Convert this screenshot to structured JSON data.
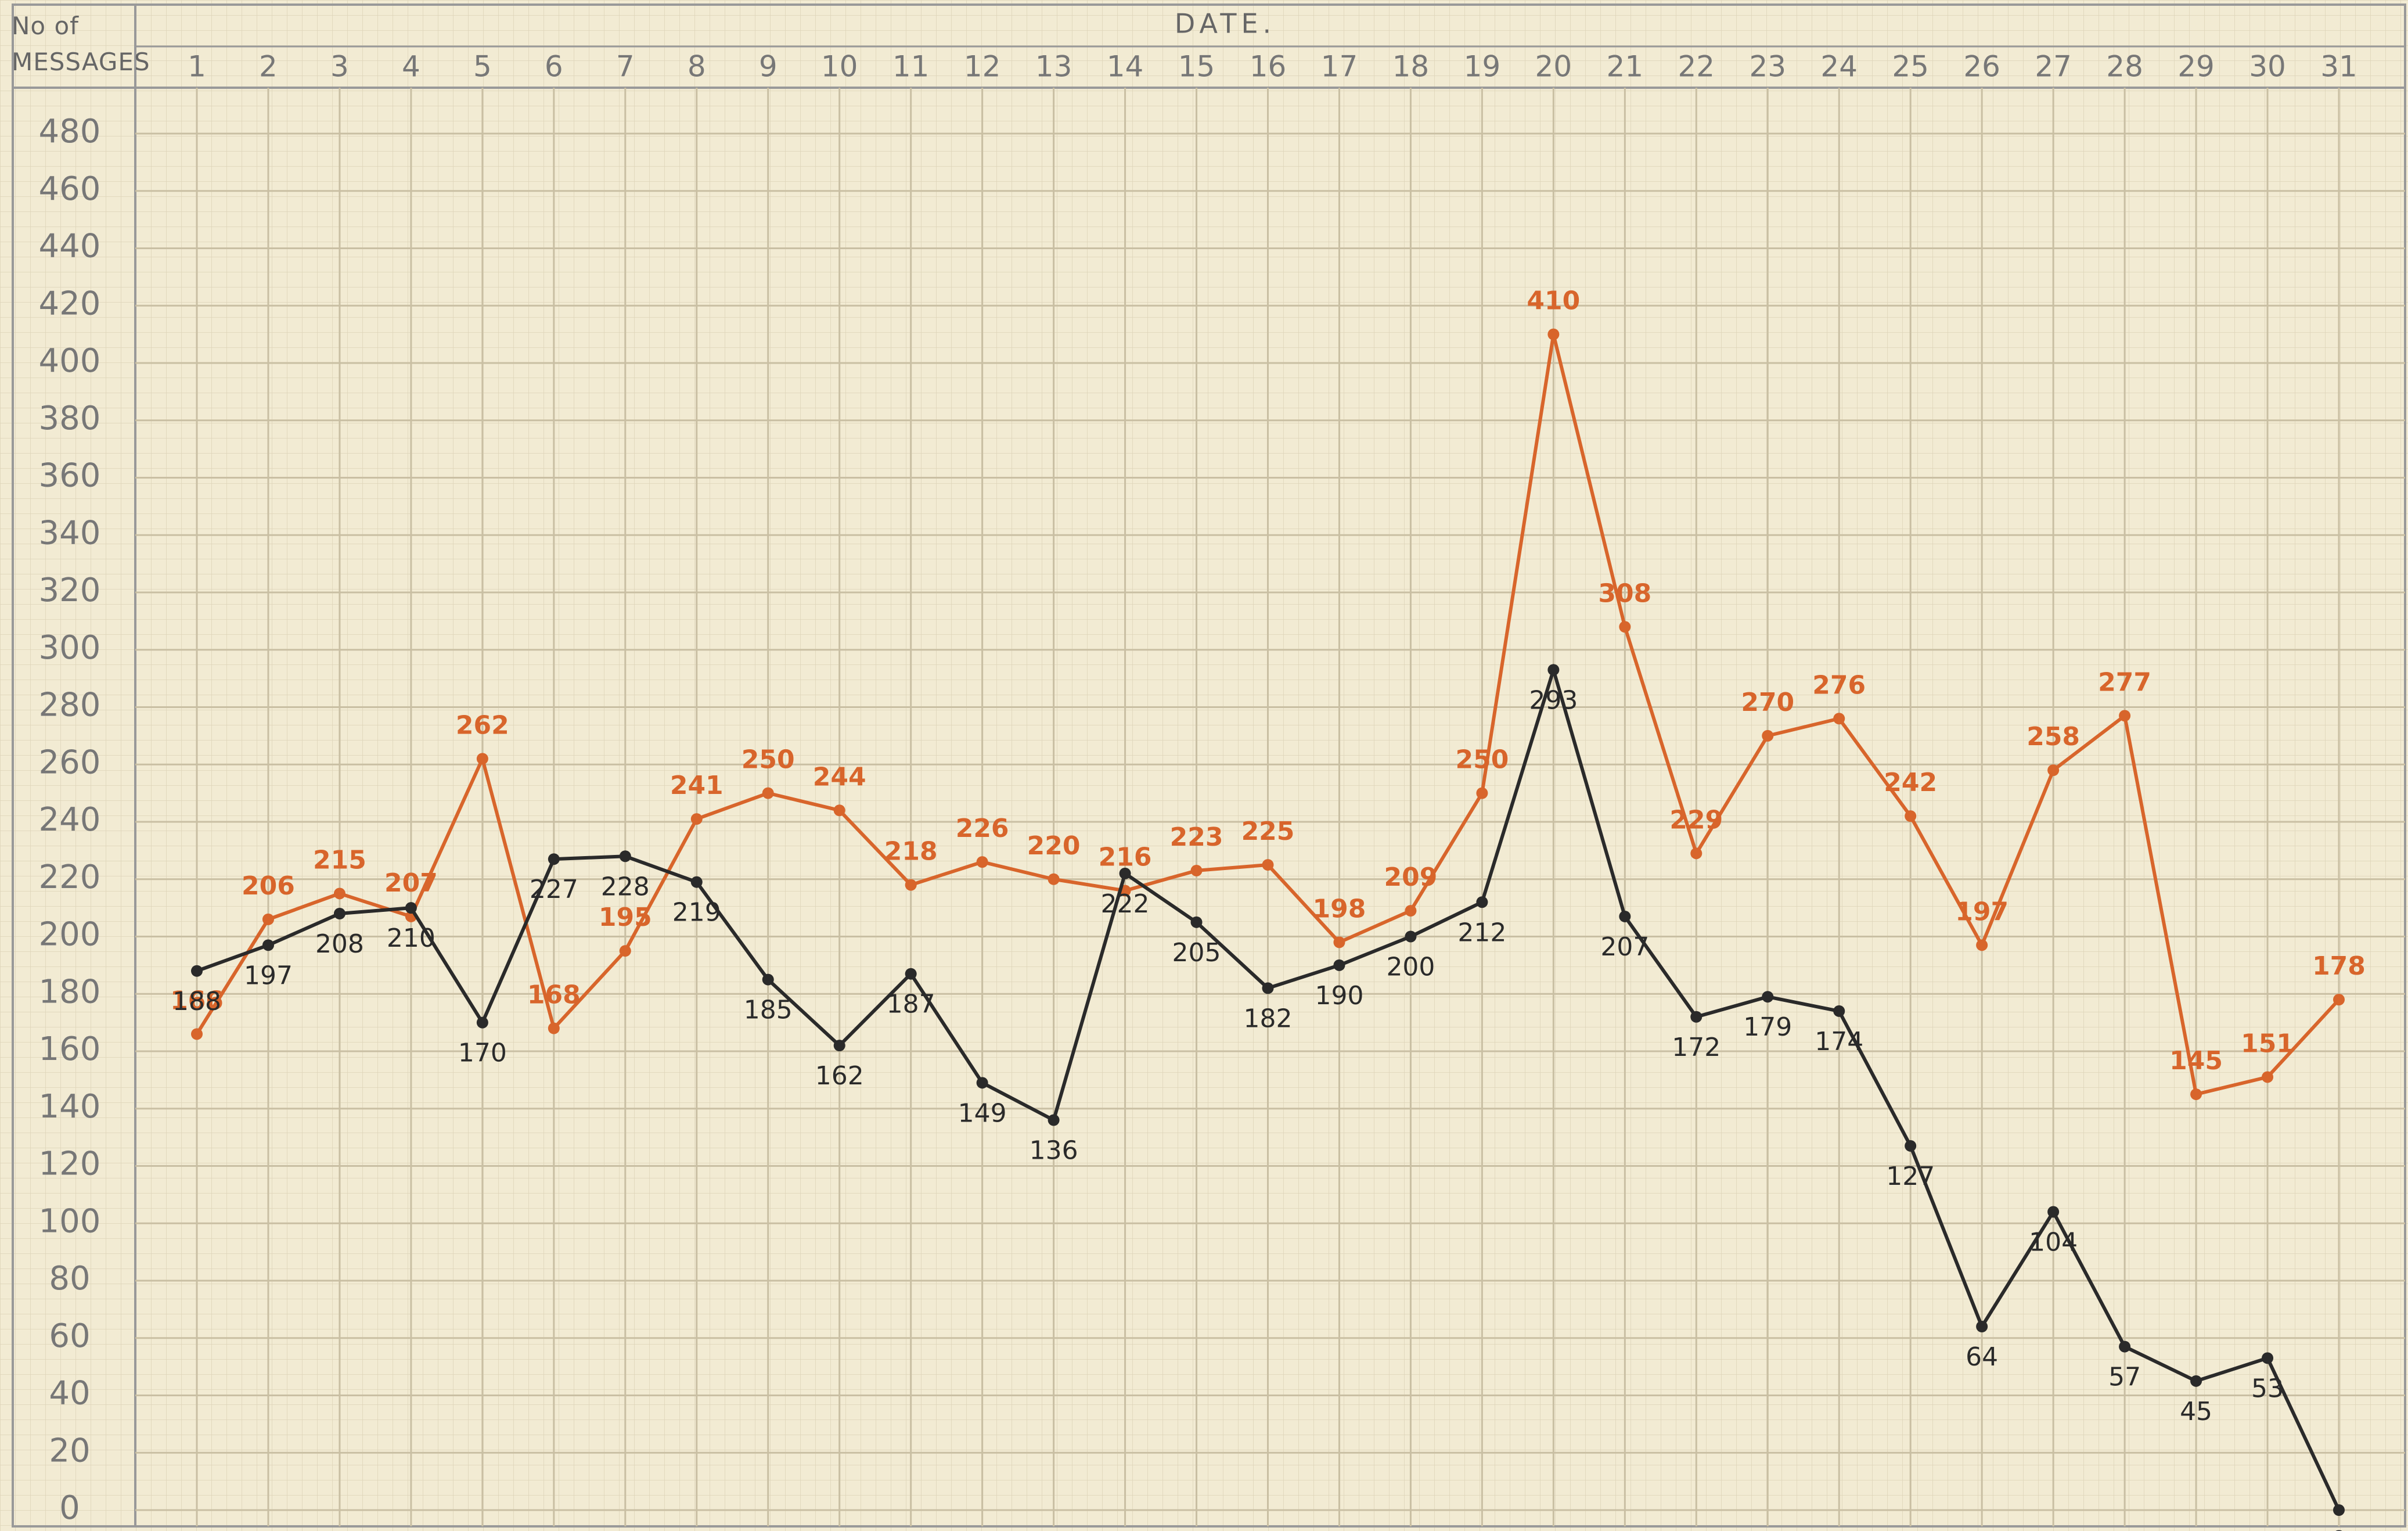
{
  "chart_data": {
    "type": "line",
    "x_label": "DATE.",
    "y_label": "No of MESSAGES",
    "categories": [
      "1",
      "2",
      "3",
      "4",
      "5",
      "6",
      "7",
      "8",
      "9",
      "10",
      "11",
      "12",
      "13",
      "14",
      "15",
      "16",
      "17",
      "18",
      "19",
      "20",
      "21",
      "22",
      "23",
      "24",
      "25",
      "26",
      "27",
      "28",
      "29",
      "30",
      "31"
    ],
    "series": [
      {
        "color": "#d8652b",
        "values": [
          166,
          206,
          215,
          207,
          262,
          168,
          195,
          241,
          250,
          244,
          218,
          226,
          220,
          216,
          223,
          225,
          198,
          209,
          250,
          410,
          308,
          229,
          270,
          276,
          242,
          197,
          258,
          277,
          145,
          151,
          178
        ]
      },
      {
        "color": "#2a2a2a",
        "values": [
          188,
          197,
          208,
          210,
          170,
          227,
          228,
          219,
          185,
          162,
          187,
          149,
          136,
          222,
          205,
          182,
          190,
          200,
          212,
          293,
          207,
          172,
          179,
          174,
          127,
          64,
          104,
          57,
          45,
          53,
          0
        ]
      }
    ],
    "ylim": [
      0,
      480
    ],
    "yticks": [
      0,
      20,
      40,
      60,
      80,
      100,
      120,
      140,
      160,
      180,
      200,
      220,
      240,
      260,
      280,
      300,
      320,
      340,
      360,
      380,
      400,
      420,
      440,
      460,
      480
    ],
    "grid": true
  }
}
